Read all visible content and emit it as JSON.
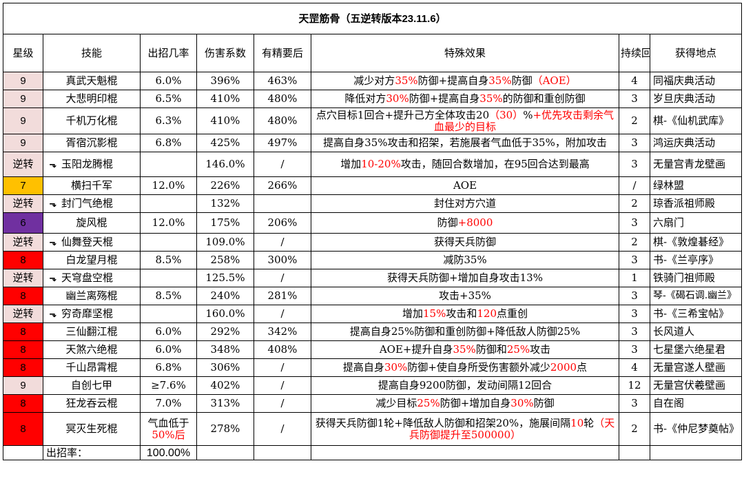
{
  "title": "天罡筋骨（五逆转版本23.11.6）",
  "headers": {
    "star": "星级",
    "skill": "技能",
    "rate": "出招几率",
    "damage": "伤害系数",
    "refined": "有精要后",
    "effect": "特殊效果",
    "duration": "持续回合",
    "source": "获得地点"
  },
  "rows": [
    {
      "star": "9",
      "skill": "真武天魁棍",
      "rate": "6.0%",
      "damage": "396%",
      "refined": "463%",
      "effect_parts": [
        {
          "t": "减少对方"
        },
        {
          "t": "35%",
          "c": "red"
        },
        {
          "t": "防御+提高自身"
        },
        {
          "t": "35%",
          "c": "red"
        },
        {
          "t": "防御"
        },
        {
          "t": "（AOE）",
          "c": "red"
        }
      ],
      "duration": "4",
      "source": "同福庆典活动"
    },
    {
      "star": "9",
      "skill": "大悲明印棍",
      "rate": "6.5%",
      "damage": "410%",
      "refined": "480%",
      "effect_parts": [
        {
          "t": "降低对方"
        },
        {
          "t": "30%",
          "c": "red"
        },
        {
          "t": "防御+提高自身"
        },
        {
          "t": "35%",
          "c": "red"
        },
        {
          "t": "的防御和重创防御"
        }
      ],
      "duration": "3",
      "source": "岁旦庆典活动"
    },
    {
      "star": "9",
      "skill": "千机万化棍",
      "rate": "6.3%",
      "damage": "410%",
      "refined": "480%",
      "effect_parts": [
        {
          "t": "点穴目标1回合+提升己方全体攻击20"
        },
        {
          "t": "（30）",
          "c": "red"
        },
        {
          "t": "%"
        },
        {
          "t": "+优先攻击剩余气血最少的目标",
          "c": "red"
        }
      ],
      "duration": "2",
      "source": "棋-《仙机武库》"
    },
    {
      "star": "9",
      "skill": "胥宿沉影棍",
      "rate": "6.8%",
      "damage": "425%",
      "refined": "497%",
      "effect_parts": [
        {
          "t": "提高自身35%攻击和招架，若施展者气血低于35%，附加攻击"
        }
      ],
      "duration": "3",
      "source": "鸿运庆典活动"
    },
    {
      "star": "逆转",
      "skill": "玉阳龙腾棍",
      "rate": "",
      "damage": "146.0%",
      "refined": "/",
      "effect_parts": [
        {
          "t": "增加"
        },
        {
          "t": "10-20%",
          "c": "red"
        },
        {
          "t": "攻击，随回合数增加，在95回合达到最高"
        }
      ],
      "duration": "3",
      "source": "无量宫青龙壁画"
    },
    {
      "star": "7",
      "skill": "横扫千军",
      "rate": "12.0%",
      "damage": "226%",
      "refined": "266%",
      "effect_parts": [
        {
          "t": "AOE"
        }
      ],
      "duration": "/",
      "source": "绿林盟"
    },
    {
      "star": "逆转",
      "skill": "封门气绝棍",
      "rate": "",
      "damage": "132%",
      "refined": "",
      "effect_parts": [
        {
          "t": "封住对方穴道"
        }
      ],
      "duration": "2",
      "source": "琼香派祖师殿"
    },
    {
      "star": "6",
      "skill": "旋风棍",
      "rate": "12.0%",
      "damage": "175%",
      "refined": "206%",
      "effect_parts": [
        {
          "t": "防御"
        },
        {
          "t": "+8000",
          "c": "red"
        }
      ],
      "duration": "3",
      "source": "六扇门"
    },
    {
      "star": "逆转",
      "skill": "仙舞登天棍",
      "rate": "",
      "damage": "109.0%",
      "refined": "/",
      "effect_parts": [
        {
          "t": "获得天兵防御"
        }
      ],
      "duration": "2",
      "source": "棋-《敦煌碁经》"
    },
    {
      "star": "8",
      "skill": "白龙望月棍",
      "rate": "8.5%",
      "damage": "258%",
      "refined": "300%",
      "effect_parts": [
        {
          "t": "减防35%"
        }
      ],
      "duration": "3",
      "source": "书-《兰亭序》"
    },
    {
      "star": "逆转",
      "skill": "天穹盘空棍",
      "rate": "",
      "damage": "125.5%",
      "refined": "/",
      "effect_parts": [
        {
          "t": "获得天兵防御+增加自身攻击13%"
        }
      ],
      "duration": "1",
      "source": "铁骑门祖师殿"
    },
    {
      "star": "8",
      "skill": "幽兰离殇棍",
      "rate": "8.5%",
      "damage": "240%",
      "refined": "281%",
      "effect_parts": [
        {
          "t": "攻击+35%"
        }
      ],
      "duration": "3",
      "source": "琴-《碣石调.幽兰》"
    },
    {
      "star": "逆转",
      "skill": "穷奇靡坚棍",
      "rate": "",
      "damage": "160.0%",
      "refined": "/",
      "effect_parts": [
        {
          "t": "增加"
        },
        {
          "t": "15%",
          "c": "red"
        },
        {
          "t": "攻击和"
        },
        {
          "t": "120",
          "c": "red"
        },
        {
          "t": "点重创"
        }
      ],
      "duration": "3",
      "source": "书-《三希宝帖》"
    },
    {
      "star": "8",
      "skill": "三仙翻江棍",
      "rate": "6.0%",
      "damage": "292%",
      "refined": "342%",
      "effect_parts": [
        {
          "t": "提高自身25%防御和重创防御+降低敌人防御25%"
        }
      ],
      "duration": "3",
      "source": "长风道人"
    },
    {
      "star": "8",
      "skill": "天煞六绝棍",
      "rate": "6.0%",
      "damage": "348%",
      "refined": "408%",
      "effect_parts": [
        {
          "t": "AOE+提升自身"
        },
        {
          "t": "35%",
          "c": "red"
        },
        {
          "t": "防御和"
        },
        {
          "t": "25%",
          "c": "red"
        },
        {
          "t": "攻击"
        }
      ],
      "duration": "3",
      "source": "七星堡六绝星君"
    },
    {
      "star": "8",
      "skill": "千山昂霄棍",
      "rate": "6.8%",
      "damage": "306%",
      "refined": "/",
      "effect_parts": [
        {
          "t": "提高自身"
        },
        {
          "t": "30%",
          "c": "red"
        },
        {
          "t": "防御+使自身所受伤害额外减少"
        },
        {
          "t": "2000",
          "c": "red"
        },
        {
          "t": "点"
        }
      ],
      "duration": "4",
      "source": "无量宫遂人壁画"
    },
    {
      "star": "9",
      "skill": "自创七甲",
      "rate": "≥7.6%",
      "damage": "402%",
      "refined": "/",
      "effect_parts": [
        {
          "t": "提高自身9200防御，发动间隔12回合"
        }
      ],
      "duration": "12",
      "source": "无量宫伏羲壁画"
    },
    {
      "star": "8",
      "skill": "狂龙吞云棍",
      "rate": "7.0%",
      "damage": "313%",
      "refined": "/",
      "effect_parts": [
        {
          "t": "减少目标"
        },
        {
          "t": "25%",
          "c": "red"
        },
        {
          "t": "防御+增加自身"
        },
        {
          "t": "30%",
          "c": "red"
        },
        {
          "t": "防御"
        }
      ],
      "duration": "3",
      "source": "自在阁"
    },
    {
      "star": "8",
      "skill": "冥灭生死棍",
      "rate_line1": "气血低于",
      "rate_line2": "50%后",
      "damage": "278%",
      "refined": "/",
      "effect_parts": [
        {
          "t": "获得天兵防御1轮+降低敌人防御和招架20%，施展间隔"
        },
        {
          "t": "10",
          "c": "red"
        },
        {
          "t": "轮"
        },
        {
          "t": "（天兵防御提升至500000）",
          "c": "red"
        }
      ],
      "duration": "2",
      "source": "书-《仲尼梦奠帖》"
    }
  ],
  "footer": {
    "label": "出招率：",
    "total": "100.00%"
  },
  "colors": {
    "red": "#ff0000",
    "purple": "#7030a0",
    "pink": "#f2dcdb",
    "orange": "#ffc000",
    "violet": "#7030a0"
  }
}
